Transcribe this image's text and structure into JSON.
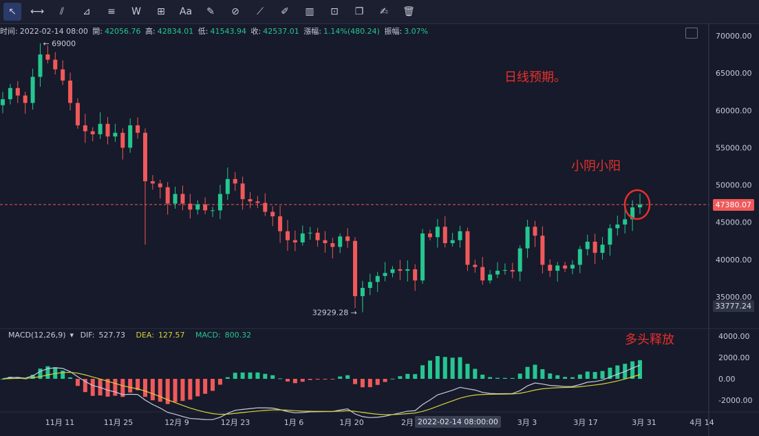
{
  "toolbar": {
    "tools": [
      {
        "name": "cursor-icon",
        "glyph": "↖"
      },
      {
        "name": "horizontal-line-icon",
        "glyph": "⟷"
      },
      {
        "name": "parallel-lines-icon",
        "glyph": "⫽"
      },
      {
        "name": "angle-tool-icon",
        "glyph": "⊿"
      },
      {
        "name": "fib-lines-icon",
        "glyph": "≡"
      },
      {
        "name": "wave-icon",
        "glyph": "W"
      },
      {
        "name": "crosshair-box-icon",
        "glyph": "⊞"
      },
      {
        "name": "text-tool-icon",
        "glyph": "Aa"
      },
      {
        "name": "brush-icon",
        "glyph": "✎"
      },
      {
        "name": "magnet-icon",
        "glyph": "⊘"
      },
      {
        "name": "ruler-icon",
        "glyph": "⟋"
      },
      {
        "name": "eraser-pen-icon",
        "glyph": "✐"
      },
      {
        "name": "candle-icon",
        "glyph": "▥"
      },
      {
        "name": "lock-icon",
        "glyph": "⊡"
      },
      {
        "name": "copy-icon",
        "glyph": "❐"
      },
      {
        "name": "edit-icon",
        "glyph": "✍"
      },
      {
        "name": "trash-icon",
        "glyph": "🗑"
      }
    ]
  },
  "ohlc": {
    "time_label": "时间:",
    "time": "2022-02-14 08:00",
    "open_label": "開:",
    "open": "42056.76",
    "high_label": "高:",
    "high": "42834.01",
    "low_label": "低:",
    "low": "41543.94",
    "close_label": "收:",
    "close": "42537.01",
    "change_label": "漲幅:",
    "change": "1.14%(480.24)",
    "amp_label": "振幅:",
    "amp": "3.07%"
  },
  "macd": {
    "title": "MACD(12,26,9)",
    "dif_label": "DIF:",
    "dif": "527.73",
    "dea_label": "DEA:",
    "dea": "127.57",
    "macd_label": "MACD:",
    "macd": "800.32"
  },
  "annotations": {
    "daily": "日线预期。",
    "small": "小阴小阳",
    "bull": "多头释放"
  },
  "price_tags": {
    "current": "47380.07",
    "cursor": "33777.24",
    "cursor_time": "2022-02-14 08:00:00"
  },
  "colors": {
    "up": "#25c690",
    "down": "#f0595a",
    "bg": "#161a2a",
    "dif": "#c8cce0",
    "dea": "#d8d23a",
    "annotation": "#e8302a"
  },
  "chart_data": {
    "type": "candlestick",
    "x": [
      "11月 11",
      "11月 25",
      "12月 9",
      "12月 23",
      "1月 6",
      "1月 20",
      "2月",
      "3月 3",
      "3月 17",
      "3月 31",
      "4月 14"
    ],
    "y_axis": {
      "ticks": [
        "70000.00",
        "65000.00",
        "60000.00",
        "55000.00",
        "50000.00",
        "45000.00",
        "40000.00",
        "35000.00"
      ],
      "ylim": [
        31500,
        71500
      ]
    },
    "macd_axis": {
      "ticks": [
        "4000.00",
        "2000.00",
        "0.00",
        "-2000.00"
      ],
      "ylim": [
        -3200,
        4200
      ]
    },
    "high_label": "69000",
    "high_value": 69000,
    "low_label": "32929.28",
    "low_value": 32929.28,
    "last_price": 47380.07,
    "close_path": [
      61500,
      63000,
      62000,
      61000,
      64500,
      67500,
      66800,
      65500,
      64000,
      61000,
      58000,
      57200,
      56800,
      58200,
      56500,
      57000,
      55000,
      58000,
      57000,
      50500,
      50200,
      49700,
      47500,
      48800,
      47500,
      46700,
      47400,
      46600,
      46600,
      48800,
      50800,
      50200,
      48100,
      47800,
      47600,
      46400,
      45800,
      43800,
      42600,
      42300,
      43500,
      43600,
      42600,
      42200,
      41700,
      43100,
      42500,
      35100,
      36200,
      37000,
      37800,
      38200,
      38700,
      38500,
      38700,
      37200,
      43500,
      43000,
      44400,
      42200,
      42600,
      43800,
      39300,
      39000,
      37200,
      38000,
      38500,
      38600,
      38400,
      41500,
      44400,
      43200,
      39300,
      38500,
      39200,
      38800,
      39300,
      41400,
      42400,
      40900,
      42000,
      44200,
      44700,
      45400,
      47000,
      47380
    ]
  }
}
